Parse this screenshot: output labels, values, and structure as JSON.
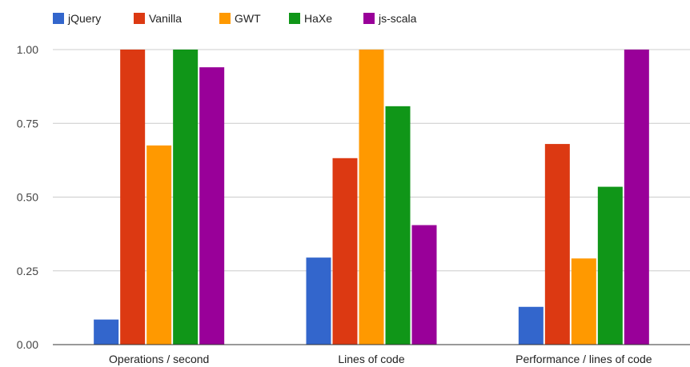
{
  "chart_data": {
    "type": "bar",
    "title": "",
    "xlabel": "",
    "ylabel": "",
    "categories": [
      "Operations / second",
      "Lines of code",
      "Performance / lines of code"
    ],
    "series": [
      {
        "name": "jQuery",
        "color": "#3366cc",
        "values": [
          0.085,
          0.295,
          0.128
        ]
      },
      {
        "name": "Vanilla",
        "color": "#dc3912",
        "values": [
          1.0,
          0.632,
          0.68
        ]
      },
      {
        "name": "GWT",
        "color": "#ff9900",
        "values": [
          0.675,
          1.0,
          0.292
        ]
      },
      {
        "name": "HaXe",
        "color": "#109618",
        "values": [
          1.0,
          0.808,
          0.535
        ]
      },
      {
        "name": "js-scala",
        "color": "#990099",
        "values": [
          0.94,
          0.405,
          1.0
        ]
      }
    ],
    "ylim": [
      0,
      1.0
    ],
    "yticks": [
      "0.00",
      "0.25",
      "0.50",
      "0.75",
      "1.00"
    ],
    "grid": true,
    "legend_position": "top-left"
  }
}
